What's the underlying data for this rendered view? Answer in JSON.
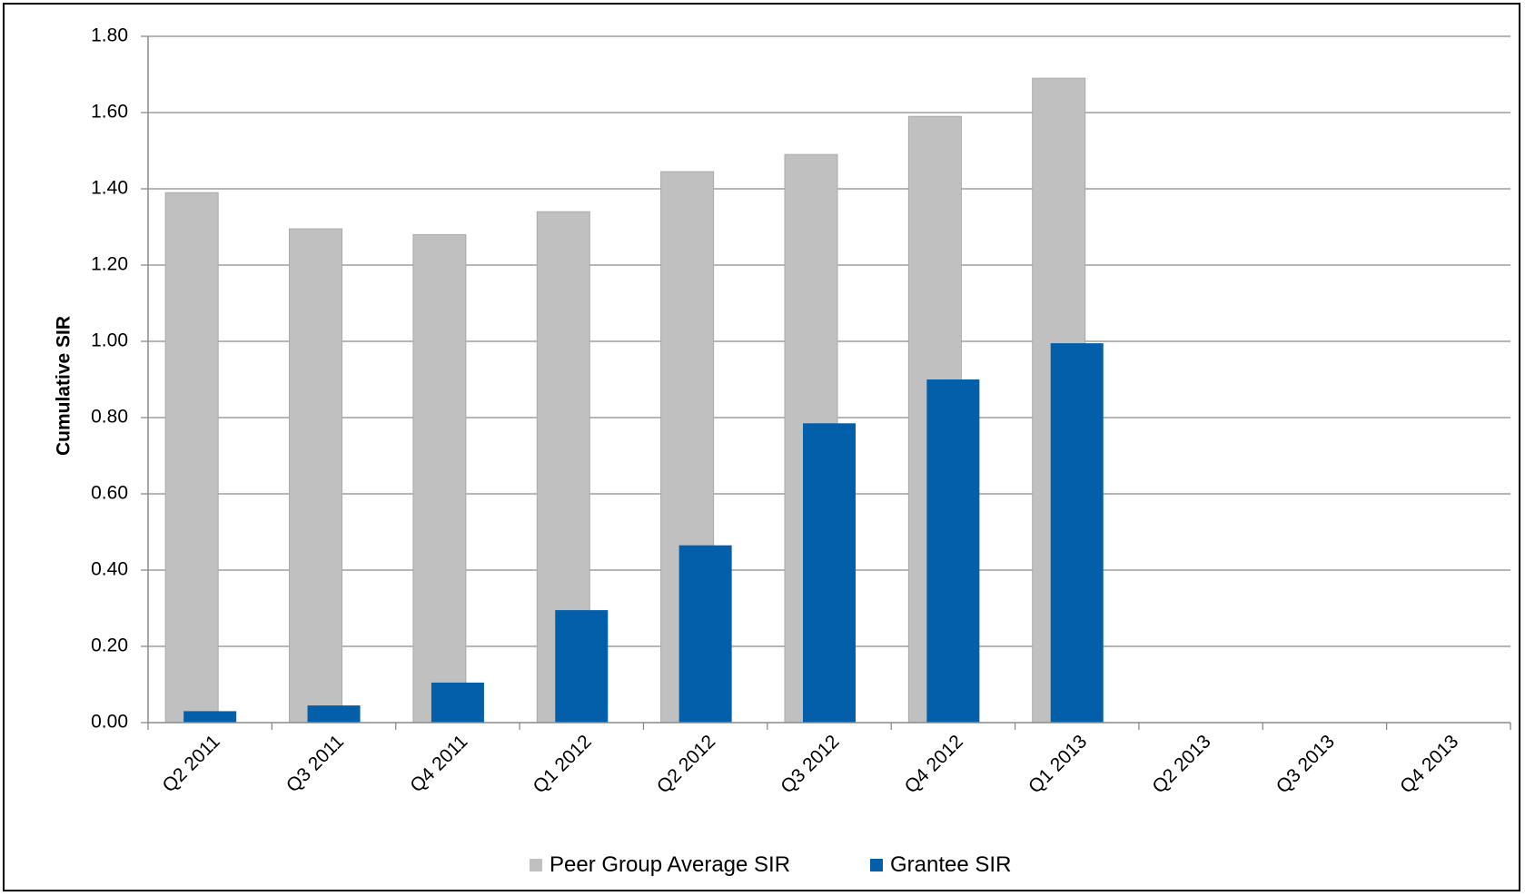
{
  "chart_data": {
    "type": "bar",
    "title": "",
    "xlabel": "",
    "ylabel": "Cumulative SIR",
    "ylim": [
      0,
      1.8
    ],
    "yticks": [
      "0.00",
      "0.20",
      "0.40",
      "0.60",
      "0.80",
      "1.00",
      "1.20",
      "1.40",
      "1.60",
      "1.80"
    ],
    "grid": true,
    "legend_position": "bottom",
    "categories": [
      "Q2 2011",
      "Q3 2011",
      "Q4 2011",
      "Q1 2012",
      "Q2 2012",
      "Q3 2012",
      "Q4 2012",
      "Q1 2013",
      "Q2 2013",
      "Q3 2013",
      "Q4 2013"
    ],
    "series": [
      {
        "name": "Peer Group Average SIR",
        "color": "#c0c0c0",
        "values": [
          1.39,
          1.295,
          1.28,
          1.34,
          1.445,
          1.49,
          1.59,
          1.69,
          null,
          null,
          null
        ]
      },
      {
        "name": "Grantee SIR",
        "color": "#045fab",
        "values": [
          0.03,
          0.045,
          0.105,
          0.295,
          0.465,
          0.785,
          0.9,
          0.995,
          null,
          null,
          null
        ]
      }
    ]
  }
}
